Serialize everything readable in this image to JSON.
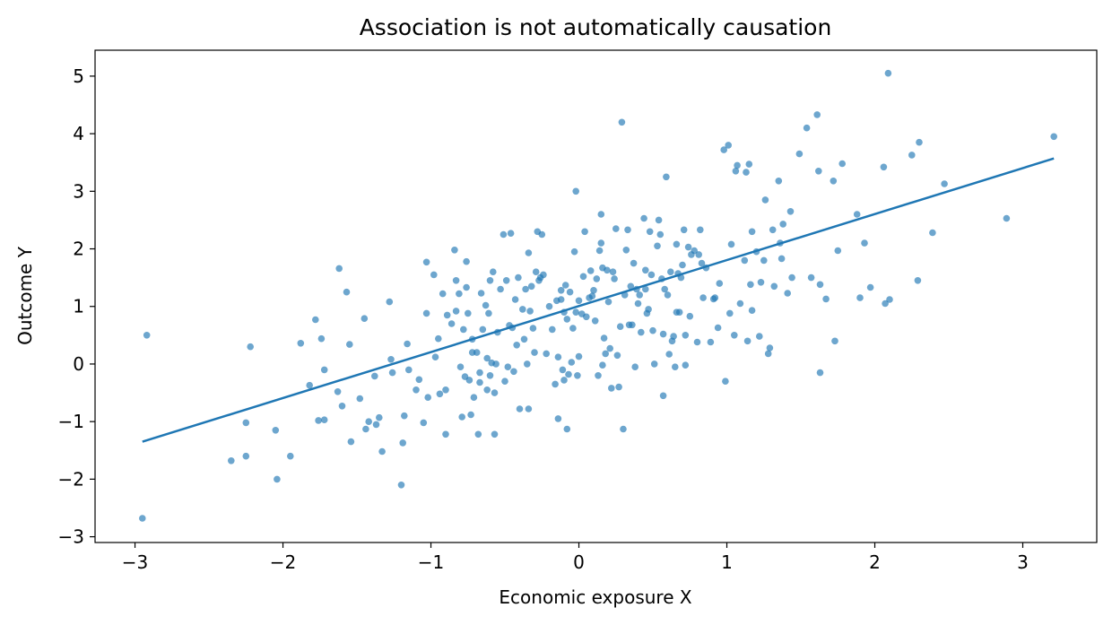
{
  "chart_data": {
    "type": "scatter",
    "title": "Association is not automatically causation",
    "xlabel": "Economic exposure X",
    "ylabel": "Outcome Y",
    "xlim": [
      -3.27,
      3.5
    ],
    "ylim": [
      -3.1,
      5.45
    ],
    "xticks": [
      -3,
      -2,
      -1,
      0,
      1,
      2,
      3
    ],
    "yticks": [
      -3,
      -2,
      -1,
      0,
      1,
      2,
      3,
      4,
      5
    ],
    "grid": false,
    "legend": "none",
    "colors": {
      "points": "#1f77b4",
      "line": "#1f77b4"
    },
    "series": [
      {
        "type": "scatter",
        "points": [
          [
            -2.95,
            -2.68
          ],
          [
            -2.92,
            0.5
          ],
          [
            -2.35,
            -1.68
          ],
          [
            -2.25,
            -1.6
          ],
          [
            -2.25,
            -1.02
          ],
          [
            -2.22,
            0.3
          ],
          [
            -2.05,
            -1.15
          ],
          [
            -2.04,
            -2.0
          ],
          [
            -1.95,
            -1.6
          ],
          [
            -1.88,
            0.36
          ],
          [
            -1.82,
            -0.37
          ],
          [
            -1.78,
            0.77
          ],
          [
            -1.76,
            -0.98
          ],
          [
            -1.74,
            0.44
          ],
          [
            -1.72,
            -0.1
          ],
          [
            -1.72,
            -0.97
          ],
          [
            -1.63,
            -0.48
          ],
          [
            -1.62,
            1.66
          ],
          [
            -1.6,
            -0.73
          ],
          [
            -1.57,
            1.25
          ],
          [
            -1.55,
            0.34
          ],
          [
            -1.54,
            -1.35
          ],
          [
            -1.48,
            -0.6
          ],
          [
            -1.45,
            0.79
          ],
          [
            -1.44,
            -1.13
          ],
          [
            -1.42,
            -1.0
          ],
          [
            -1.38,
            -0.21
          ],
          [
            -1.37,
            -1.05
          ],
          [
            -1.35,
            -0.93
          ],
          [
            -1.33,
            -1.52
          ],
          [
            -1.28,
            1.08
          ],
          [
            -1.27,
            0.08
          ],
          [
            -1.26,
            -0.15
          ],
          [
            -1.2,
            -2.1
          ],
          [
            -1.19,
            -1.37
          ],
          [
            -1.18,
            -0.9
          ],
          [
            -1.16,
            0.35
          ],
          [
            -1.15,
            -0.1
          ],
          [
            -1.1,
            -0.45
          ],
          [
            -1.08,
            -0.27
          ],
          [
            -1.05,
            -1.02
          ],
          [
            -1.03,
            0.88
          ],
          [
            -1.03,
            1.77
          ],
          [
            -1.02,
            -0.58
          ],
          [
            -0.98,
            1.55
          ],
          [
            -0.97,
            0.12
          ],
          [
            -0.95,
            0.44
          ],
          [
            -0.94,
            -0.52
          ],
          [
            -0.92,
            1.22
          ],
          [
            -0.9,
            -1.22
          ],
          [
            -0.9,
            -0.45
          ],
          [
            -0.89,
            0.85
          ],
          [
            -0.86,
            0.7
          ],
          [
            -0.84,
            1.98
          ],
          [
            -0.83,
            1.45
          ],
          [
            -0.83,
            0.92
          ],
          [
            -0.81,
            1.22
          ],
          [
            -0.8,
            -0.05
          ],
          [
            -0.79,
            -0.92
          ],
          [
            -0.78,
            0.6
          ],
          [
            -0.77,
            -0.22
          ],
          [
            -0.76,
            1.78
          ],
          [
            -0.76,
            1.33
          ],
          [
            -0.75,
            0.88
          ],
          [
            -0.74,
            -0.28
          ],
          [
            -0.73,
            -0.88
          ],
          [
            -0.72,
            0.43
          ],
          [
            -0.72,
            0.2
          ],
          [
            -0.71,
            -0.58
          ],
          [
            -0.69,
            0.2
          ],
          [
            -0.68,
            -1.22
          ],
          [
            -0.67,
            -0.15
          ],
          [
            -0.67,
            -0.32
          ],
          [
            -0.66,
            1.23
          ],
          [
            -0.65,
            0.6
          ],
          [
            -0.63,
            1.02
          ],
          [
            -0.62,
            0.1
          ],
          [
            -0.62,
            -0.45
          ],
          [
            -0.61,
            0.88
          ],
          [
            -0.6,
            -0.2
          ],
          [
            -0.6,
            1.45
          ],
          [
            -0.59,
            0.02
          ],
          [
            -0.58,
            1.6
          ],
          [
            -0.57,
            -1.22
          ],
          [
            -0.57,
            -0.5
          ],
          [
            -0.56,
            0.0
          ],
          [
            -0.55,
            0.55
          ],
          [
            -0.53,
            1.3
          ],
          [
            -0.51,
            2.25
          ],
          [
            -0.5,
            -0.3
          ],
          [
            -0.49,
            1.45
          ],
          [
            -0.48,
            -0.05
          ],
          [
            -0.47,
            0.67
          ],
          [
            -0.46,
            2.27
          ],
          [
            -0.45,
            0.63
          ],
          [
            -0.44,
            -0.13
          ],
          [
            -0.43,
            1.12
          ],
          [
            -0.42,
            0.33
          ],
          [
            -0.41,
            1.5
          ],
          [
            -0.4,
            -0.78
          ],
          [
            -0.38,
            0.95
          ],
          [
            -0.37,
            0.43
          ],
          [
            -0.36,
            1.3
          ],
          [
            -0.35,
            0.0
          ],
          [
            -0.34,
            -0.78
          ],
          [
            -0.34,
            1.93
          ],
          [
            -0.33,
            0.92
          ],
          [
            -0.32,
            1.35
          ],
          [
            -0.31,
            0.62
          ],
          [
            -0.3,
            0.2
          ],
          [
            -0.29,
            1.6
          ],
          [
            -0.28,
            2.3
          ],
          [
            -0.27,
            1.45
          ],
          [
            -0.26,
            1.5
          ],
          [
            -0.25,
            2.25
          ],
          [
            -0.24,
            1.55
          ],
          [
            -0.22,
            0.18
          ],
          [
            -0.2,
            1.0
          ],
          [
            -0.18,
            0.6
          ],
          [
            -0.16,
            -0.35
          ],
          [
            -0.15,
            1.1
          ],
          [
            -0.14,
            0.12
          ],
          [
            -0.14,
            -0.95
          ],
          [
            -0.12,
            1.12
          ],
          [
            -0.12,
            1.28
          ],
          [
            -0.11,
            -0.1
          ],
          [
            -0.1,
            0.9
          ],
          [
            -0.1,
            -0.28
          ],
          [
            -0.09,
            1.37
          ],
          [
            -0.08,
            -1.13
          ],
          [
            -0.08,
            0.78
          ],
          [
            -0.07,
            -0.18
          ],
          [
            -0.06,
            1.25
          ],
          [
            -0.05,
            0.03
          ],
          [
            -0.04,
            0.62
          ],
          [
            -0.03,
            1.95
          ],
          [
            -0.02,
            3.0
          ],
          [
            -0.02,
            0.9
          ],
          [
            -0.01,
            -0.2
          ],
          [
            0.0,
            0.13
          ],
          [
            0.0,
            1.1
          ],
          [
            0.02,
            0.87
          ],
          [
            0.03,
            1.52
          ],
          [
            0.04,
            2.3
          ],
          [
            0.05,
            0.82
          ],
          [
            0.07,
            1.15
          ],
          [
            0.08,
            1.62
          ],
          [
            0.09,
            1.18
          ],
          [
            0.1,
            1.28
          ],
          [
            0.11,
            0.75
          ],
          [
            0.12,
            1.48
          ],
          [
            0.13,
            -0.2
          ],
          [
            0.14,
            1.97
          ],
          [
            0.15,
            2.6
          ],
          [
            0.15,
            2.1
          ],
          [
            0.16,
            -0.02
          ],
          [
            0.16,
            1.67
          ],
          [
            0.17,
            0.45
          ],
          [
            0.18,
            0.18
          ],
          [
            0.19,
            1.63
          ],
          [
            0.2,
            1.08
          ],
          [
            0.21,
            0.27
          ],
          [
            0.22,
            -0.42
          ],
          [
            0.23,
            1.6
          ],
          [
            0.24,
            1.48
          ],
          [
            0.25,
            2.35
          ],
          [
            0.26,
            0.15
          ],
          [
            0.27,
            -0.4
          ],
          [
            0.28,
            0.65
          ],
          [
            0.29,
            4.2
          ],
          [
            0.3,
            -1.13
          ],
          [
            0.31,
            1.2
          ],
          [
            0.32,
            1.98
          ],
          [
            0.33,
            2.33
          ],
          [
            0.34,
            0.68
          ],
          [
            0.35,
            1.35
          ],
          [
            0.36,
            0.68
          ],
          [
            0.37,
            1.75
          ],
          [
            0.38,
            -0.05
          ],
          [
            0.39,
            1.3
          ],
          [
            0.4,
            1.05
          ],
          [
            0.41,
            1.2
          ],
          [
            0.42,
            0.55
          ],
          [
            0.44,
            2.53
          ],
          [
            0.45,
            1.63
          ],
          [
            0.45,
            1.3
          ],
          [
            0.46,
            0.88
          ],
          [
            0.47,
            0.95
          ],
          [
            0.48,
            2.3
          ],
          [
            0.49,
            1.55
          ],
          [
            0.5,
            0.58
          ],
          [
            0.51,
            0.0
          ],
          [
            0.53,
            2.05
          ],
          [
            0.54,
            2.5
          ],
          [
            0.55,
            2.25
          ],
          [
            0.56,
            1.48
          ],
          [
            0.57,
            0.52
          ],
          [
            0.57,
            -0.55
          ],
          [
            0.58,
            1.3
          ],
          [
            0.59,
            3.25
          ],
          [
            0.6,
            1.2
          ],
          [
            0.61,
            0.17
          ],
          [
            0.62,
            1.6
          ],
          [
            0.63,
            0.4
          ],
          [
            0.64,
            0.48
          ],
          [
            0.65,
            -0.05
          ],
          [
            0.66,
            2.08
          ],
          [
            0.66,
            0.9
          ],
          [
            0.67,
            1.57
          ],
          [
            0.68,
            0.9
          ],
          [
            0.69,
            1.5
          ],
          [
            0.7,
            1.72
          ],
          [
            0.71,
            2.33
          ],
          [
            0.72,
            0.5
          ],
          [
            0.72,
            -0.02
          ],
          [
            0.74,
            2.03
          ],
          [
            0.75,
            0.83
          ],
          [
            0.76,
            1.9
          ],
          [
            0.78,
            1.97
          ],
          [
            0.8,
            0.38
          ],
          [
            0.81,
            1.9
          ],
          [
            0.82,
            2.33
          ],
          [
            0.83,
            1.75
          ],
          [
            0.84,
            1.15
          ],
          [
            0.86,
            1.67
          ],
          [
            0.89,
            0.38
          ],
          [
            0.91,
            1.13
          ],
          [
            0.92,
            1.15
          ],
          [
            0.94,
            0.63
          ],
          [
            0.95,
            1.4
          ],
          [
            0.98,
            3.72
          ],
          [
            0.99,
            -0.3
          ],
          [
            1.01,
            3.8
          ],
          [
            1.02,
            0.88
          ],
          [
            1.03,
            2.08
          ],
          [
            1.05,
            0.5
          ],
          [
            1.06,
            3.35
          ],
          [
            1.07,
            3.45
          ],
          [
            1.09,
            1.05
          ],
          [
            1.12,
            1.8
          ],
          [
            1.13,
            3.33
          ],
          [
            1.14,
            0.4
          ],
          [
            1.15,
            3.47
          ],
          [
            1.16,
            1.38
          ],
          [
            1.17,
            2.3
          ],
          [
            1.17,
            0.93
          ],
          [
            1.2,
            1.95
          ],
          [
            1.22,
            0.48
          ],
          [
            1.23,
            1.42
          ],
          [
            1.25,
            1.8
          ],
          [
            1.26,
            2.85
          ],
          [
            1.28,
            0.18
          ],
          [
            1.29,
            0.28
          ],
          [
            1.31,
            2.33
          ],
          [
            1.32,
            1.35
          ],
          [
            1.35,
            3.18
          ],
          [
            1.36,
            2.1
          ],
          [
            1.37,
            1.83
          ],
          [
            1.38,
            2.43
          ],
          [
            1.41,
            1.23
          ],
          [
            1.43,
            2.65
          ],
          [
            1.44,
            1.5
          ],
          [
            1.49,
            3.65
          ],
          [
            1.54,
            4.1
          ],
          [
            1.57,
            1.5
          ],
          [
            1.61,
            4.33
          ],
          [
            1.62,
            3.35
          ],
          [
            1.63,
            1.38
          ],
          [
            1.63,
            -0.15
          ],
          [
            1.67,
            1.13
          ],
          [
            1.72,
            3.18
          ],
          [
            1.73,
            0.4
          ],
          [
            1.75,
            1.97
          ],
          [
            1.78,
            3.48
          ],
          [
            1.88,
            2.6
          ],
          [
            1.9,
            1.15
          ],
          [
            1.93,
            2.1
          ],
          [
            1.97,
            1.33
          ],
          [
            2.06,
            3.42
          ],
          [
            2.07,
            1.05
          ],
          [
            2.09,
            5.05
          ],
          [
            2.1,
            1.12
          ],
          [
            2.25,
            3.63
          ],
          [
            2.29,
            1.45
          ],
          [
            2.3,
            3.85
          ],
          [
            2.39,
            2.28
          ],
          [
            2.47,
            3.13
          ],
          [
            2.89,
            2.53
          ],
          [
            3.21,
            3.95
          ]
        ]
      },
      {
        "type": "line",
        "x": [
          -2.95,
          3.21
        ],
        "y": [
          -1.35,
          3.57
        ]
      }
    ]
  }
}
